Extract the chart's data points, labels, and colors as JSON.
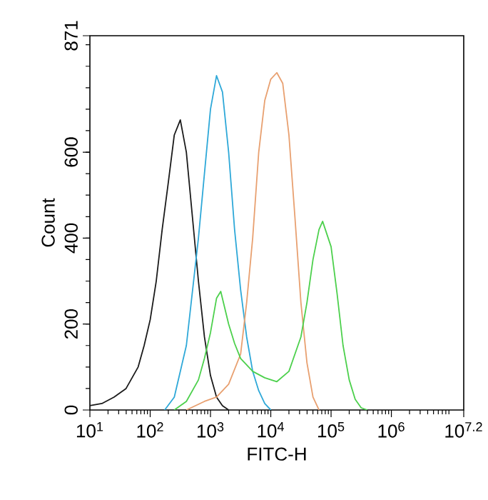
{
  "chart_data": {
    "type": "line",
    "xlabel": "FITC-H",
    "ylabel": "Count",
    "log": "x",
    "marker": "none",
    "line_style": "solid",
    "xlim": [
      10,
      15848932
    ],
    "ylim": [
      0,
      871
    ],
    "xticks": [
      {
        "value": 10,
        "label": "10$^{1}$"
      },
      {
        "value": 100,
        "label": "10$^{2}$"
      },
      {
        "value": 1000,
        "label": "10$^{3}$"
      },
      {
        "value": 10000,
        "label": "10$^{4}$"
      },
      {
        "value": 100000,
        "label": "10$^{5}$"
      },
      {
        "value": 1000000,
        "label": "10$^{6}$"
      },
      {
        "value": 15848932,
        "label": "10$^{7.2}$"
      }
    ],
    "yticks": [
      0,
      200,
      400,
      600,
      871
    ],
    "series": [
      {
        "color": "#1a1a1a",
        "x": [
          10,
          15.8,
          25.1,
          39.8,
          63.1,
          79.4,
          100,
          126,
          158,
          200,
          251,
          316,
          398,
          501,
          631,
          794,
          1000,
          1260,
          1580,
          2000
        ],
        "values": [
          10,
          15,
          30,
          50,
          100,
          150,
          210,
          300,
          420,
          530,
          640,
          675,
          600,
          450,
          300,
          170,
          80,
          30,
          10,
          0
        ]
      },
      {
        "color": "#2ea8d8",
        "x": [
          174,
          251,
          398,
          631,
          794,
          1000,
          1260,
          1580,
          2000,
          2510,
          3160,
          3980,
          5010,
          6310,
          7940,
          10000
        ],
        "values": [
          0,
          30,
          150,
          400,
          550,
          700,
          778,
          740,
          600,
          420,
          280,
          170,
          90,
          45,
          15,
          0
        ]
      },
      {
        "color": "#e8a070",
        "x": [
          398,
          794,
          1260,
          2000,
          3160,
          3980,
          5010,
          6310,
          7940,
          10000,
          12600,
          15800,
          20000,
          25100,
          31600,
          39800,
          50100,
          63100
        ],
        "values": [
          0,
          20,
          30,
          60,
          130,
          250,
          400,
          600,
          720,
          770,
          785,
          760,
          640,
          450,
          250,
          110,
          30,
          0
        ]
      },
      {
        "color": "#4cd04c",
        "x": [
          251,
          398,
          631,
          794,
          1000,
          1260,
          1480,
          2000,
          2510,
          3160,
          5010,
          7940,
          12600,
          20000,
          31600,
          39800,
          50100,
          63100,
          72400,
          100000,
          126000,
          158000,
          200000,
          251000,
          316000,
          398000
        ],
        "values": [
          0,
          20,
          70,
          120,
          180,
          260,
          276,
          200,
          155,
          120,
          90,
          75,
          66,
          90,
          170,
          250,
          350,
          420,
          439,
          380,
          270,
          150,
          70,
          25,
          5,
          0
        ]
      }
    ]
  }
}
